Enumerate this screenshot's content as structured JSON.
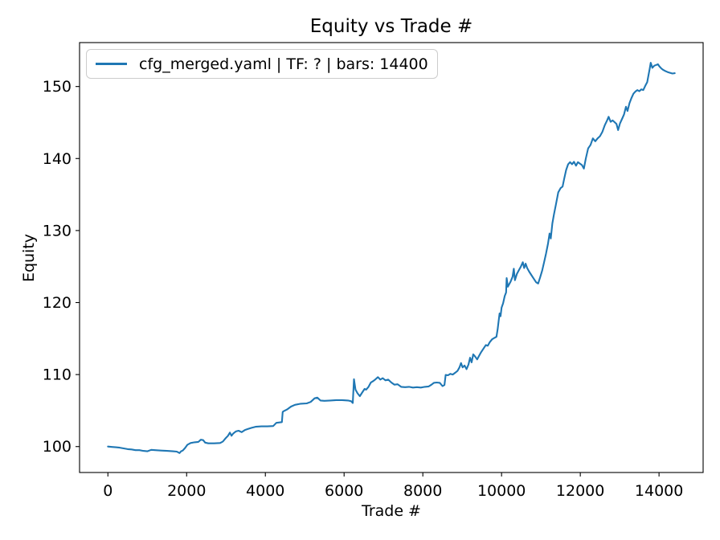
{
  "chart_data": {
    "type": "line",
    "title": "Equity vs Trade #",
    "xlabel": "Trade #",
    "ylabel": "Equity",
    "legend": [
      "cfg_merged.yaml | TF: ? | bars: 14400"
    ],
    "legend_position": "upper left",
    "line_color": "#1f77b4",
    "grid": false,
    "xlim": [
      -720,
      15120
    ],
    "ylim": [
      96.4,
      156.1
    ],
    "xticks": [
      0,
      2000,
      4000,
      6000,
      8000,
      10000,
      12000,
      14000
    ],
    "yticks": [
      100,
      110,
      120,
      130,
      140,
      150
    ],
    "series": [
      {
        "name": "cfg_merged.yaml | TF: ? | bars: 14400",
        "points": [
          [
            0,
            100.0
          ],
          [
            100,
            99.95
          ],
          [
            200,
            99.9
          ],
          [
            300,
            99.85
          ],
          [
            400,
            99.75
          ],
          [
            500,
            99.65
          ],
          [
            600,
            99.6
          ],
          [
            700,
            99.5
          ],
          [
            800,
            99.5
          ],
          [
            900,
            99.4
          ],
          [
            1000,
            99.35
          ],
          [
            1100,
            99.55
          ],
          [
            1200,
            99.5
          ],
          [
            1350,
            99.45
          ],
          [
            1500,
            99.4
          ],
          [
            1650,
            99.35
          ],
          [
            1750,
            99.3
          ],
          [
            1820,
            99.1
          ],
          [
            1860,
            99.35
          ],
          [
            1900,
            99.45
          ],
          [
            1960,
            99.8
          ],
          [
            2020,
            100.25
          ],
          [
            2100,
            100.5
          ],
          [
            2200,
            100.6
          ],
          [
            2300,
            100.65
          ],
          [
            2360,
            100.95
          ],
          [
            2420,
            100.9
          ],
          [
            2470,
            100.55
          ],
          [
            2550,
            100.45
          ],
          [
            2700,
            100.45
          ],
          [
            2850,
            100.5
          ],
          [
            2920,
            100.7
          ],
          [
            2980,
            101.1
          ],
          [
            3050,
            101.5
          ],
          [
            3100,
            101.95
          ],
          [
            3140,
            101.5
          ],
          [
            3180,
            101.8
          ],
          [
            3250,
            102.1
          ],
          [
            3320,
            102.2
          ],
          [
            3400,
            102.0
          ],
          [
            3480,
            102.3
          ],
          [
            3560,
            102.45
          ],
          [
            3650,
            102.6
          ],
          [
            3750,
            102.75
          ],
          [
            3900,
            102.8
          ],
          [
            4050,
            102.8
          ],
          [
            4200,
            102.85
          ],
          [
            4280,
            103.3
          ],
          [
            4360,
            103.35
          ],
          [
            4420,
            103.4
          ],
          [
            4440,
            104.8
          ],
          [
            4460,
            104.9
          ],
          [
            4550,
            105.15
          ],
          [
            4650,
            105.55
          ],
          [
            4750,
            105.8
          ],
          [
            4900,
            105.95
          ],
          [
            5050,
            106.0
          ],
          [
            5150,
            106.2
          ],
          [
            5250,
            106.7
          ],
          [
            5320,
            106.8
          ],
          [
            5400,
            106.4
          ],
          [
            5500,
            106.35
          ],
          [
            5650,
            106.4
          ],
          [
            5800,
            106.45
          ],
          [
            5950,
            106.45
          ],
          [
            6100,
            106.4
          ],
          [
            6180,
            106.3
          ],
          [
            6220,
            106.05
          ],
          [
            6250,
            109.35
          ],
          [
            6290,
            107.9
          ],
          [
            6340,
            107.4
          ],
          [
            6400,
            107.0
          ],
          [
            6460,
            107.5
          ],
          [
            6520,
            108.0
          ],
          [
            6560,
            107.9
          ],
          [
            6620,
            108.3
          ],
          [
            6680,
            108.9
          ],
          [
            6740,
            109.1
          ],
          [
            6800,
            109.35
          ],
          [
            6860,
            109.65
          ],
          [
            6920,
            109.3
          ],
          [
            6980,
            109.5
          ],
          [
            7050,
            109.2
          ],
          [
            7120,
            109.3
          ],
          [
            7200,
            108.9
          ],
          [
            7280,
            108.6
          ],
          [
            7360,
            108.65
          ],
          [
            7450,
            108.3
          ],
          [
            7550,
            108.25
          ],
          [
            7650,
            108.3
          ],
          [
            7750,
            108.2
          ],
          [
            7850,
            108.25
          ],
          [
            7950,
            108.2
          ],
          [
            8050,
            108.3
          ],
          [
            8150,
            108.35
          ],
          [
            8220,
            108.6
          ],
          [
            8280,
            108.85
          ],
          [
            8350,
            108.9
          ],
          [
            8430,
            108.85
          ],
          [
            8500,
            108.4
          ],
          [
            8550,
            108.55
          ],
          [
            8580,
            109.95
          ],
          [
            8640,
            109.9
          ],
          [
            8700,
            110.1
          ],
          [
            8760,
            110.0
          ],
          [
            8820,
            110.25
          ],
          [
            8880,
            110.5
          ],
          [
            8930,
            111.0
          ],
          [
            8970,
            111.6
          ],
          [
            9010,
            111.0
          ],
          [
            9060,
            111.25
          ],
          [
            9110,
            110.75
          ],
          [
            9160,
            111.4
          ],
          [
            9200,
            112.35
          ],
          [
            9240,
            111.7
          ],
          [
            9280,
            112.8
          ],
          [
            9330,
            112.5
          ],
          [
            9380,
            112.1
          ],
          [
            9430,
            112.6
          ],
          [
            9480,
            113.1
          ],
          [
            9540,
            113.6
          ],
          [
            9600,
            114.1
          ],
          [
            9650,
            114.0
          ],
          [
            9700,
            114.5
          ],
          [
            9760,
            114.9
          ],
          [
            9820,
            115.1
          ],
          [
            9870,
            115.25
          ],
          [
            9900,
            116.3
          ],
          [
            9925,
            117.4
          ],
          [
            9950,
            118.5
          ],
          [
            9975,
            118.1
          ],
          [
            10000,
            119.3
          ],
          [
            10040,
            119.9
          ],
          [
            10080,
            120.9
          ],
          [
            10115,
            121.4
          ],
          [
            10130,
            123.4
          ],
          [
            10160,
            122.2
          ],
          [
            10230,
            122.9
          ],
          [
            10280,
            123.6
          ],
          [
            10310,
            124.7
          ],
          [
            10340,
            123.1
          ],
          [
            10390,
            124.0
          ],
          [
            10440,
            124.5
          ],
          [
            10490,
            125.0
          ],
          [
            10540,
            125.6
          ],
          [
            10575,
            124.8
          ],
          [
            10610,
            125.4
          ],
          [
            10650,
            124.8
          ],
          [
            10700,
            124.3
          ],
          [
            10760,
            123.8
          ],
          [
            10820,
            123.3
          ],
          [
            10880,
            122.8
          ],
          [
            10930,
            122.65
          ],
          [
            10980,
            123.5
          ],
          [
            11030,
            124.4
          ],
          [
            11080,
            125.6
          ],
          [
            11130,
            126.8
          ],
          [
            11180,
            128.2
          ],
          [
            11220,
            129.6
          ],
          [
            11250,
            128.9
          ],
          [
            11290,
            131.0
          ],
          [
            11330,
            132.2
          ],
          [
            11380,
            133.6
          ],
          [
            11440,
            135.3
          ],
          [
            11500,
            135.9
          ],
          [
            11550,
            136.1
          ],
          [
            11590,
            137.2
          ],
          [
            11640,
            138.4
          ],
          [
            11690,
            139.2
          ],
          [
            11740,
            139.5
          ],
          [
            11790,
            139.2
          ],
          [
            11840,
            139.55
          ],
          [
            11890,
            139.0
          ],
          [
            11940,
            139.5
          ],
          [
            11990,
            139.3
          ],
          [
            12040,
            139.1
          ],
          [
            12090,
            138.6
          ],
          [
            12140,
            140.0
          ],
          [
            12200,
            141.4
          ],
          [
            12260,
            141.9
          ],
          [
            12320,
            142.8
          ],
          [
            12380,
            142.4
          ],
          [
            12440,
            142.8
          ],
          [
            12500,
            143.1
          ],
          [
            12560,
            143.7
          ],
          [
            12620,
            144.6
          ],
          [
            12680,
            145.3
          ],
          [
            12720,
            145.8
          ],
          [
            12770,
            145.1
          ],
          [
            12820,
            145.3
          ],
          [
            12870,
            145.05
          ],
          [
            12920,
            144.8
          ],
          [
            12960,
            143.95
          ],
          [
            13010,
            144.9
          ],
          [
            13060,
            145.5
          ],
          [
            13110,
            146.1
          ],
          [
            13160,
            147.2
          ],
          [
            13200,
            146.6
          ],
          [
            13250,
            147.7
          ],
          [
            13300,
            148.4
          ],
          [
            13350,
            149.0
          ],
          [
            13400,
            149.3
          ],
          [
            13450,
            149.5
          ],
          [
            13500,
            149.35
          ],
          [
            13550,
            149.6
          ],
          [
            13600,
            149.5
          ],
          [
            13650,
            150.1
          ],
          [
            13700,
            150.6
          ],
          [
            13730,
            151.5
          ],
          [
            13760,
            152.4
          ],
          [
            13790,
            153.3
          ],
          [
            13830,
            152.6
          ],
          [
            13880,
            152.9
          ],
          [
            13930,
            153.0
          ],
          [
            13970,
            153.1
          ],
          [
            14010,
            152.8
          ],
          [
            14060,
            152.5
          ],
          [
            14110,
            152.3
          ],
          [
            14160,
            152.15
          ],
          [
            14220,
            152.0
          ],
          [
            14280,
            151.9
          ],
          [
            14340,
            151.8
          ],
          [
            14400,
            151.85
          ]
        ]
      }
    ]
  }
}
